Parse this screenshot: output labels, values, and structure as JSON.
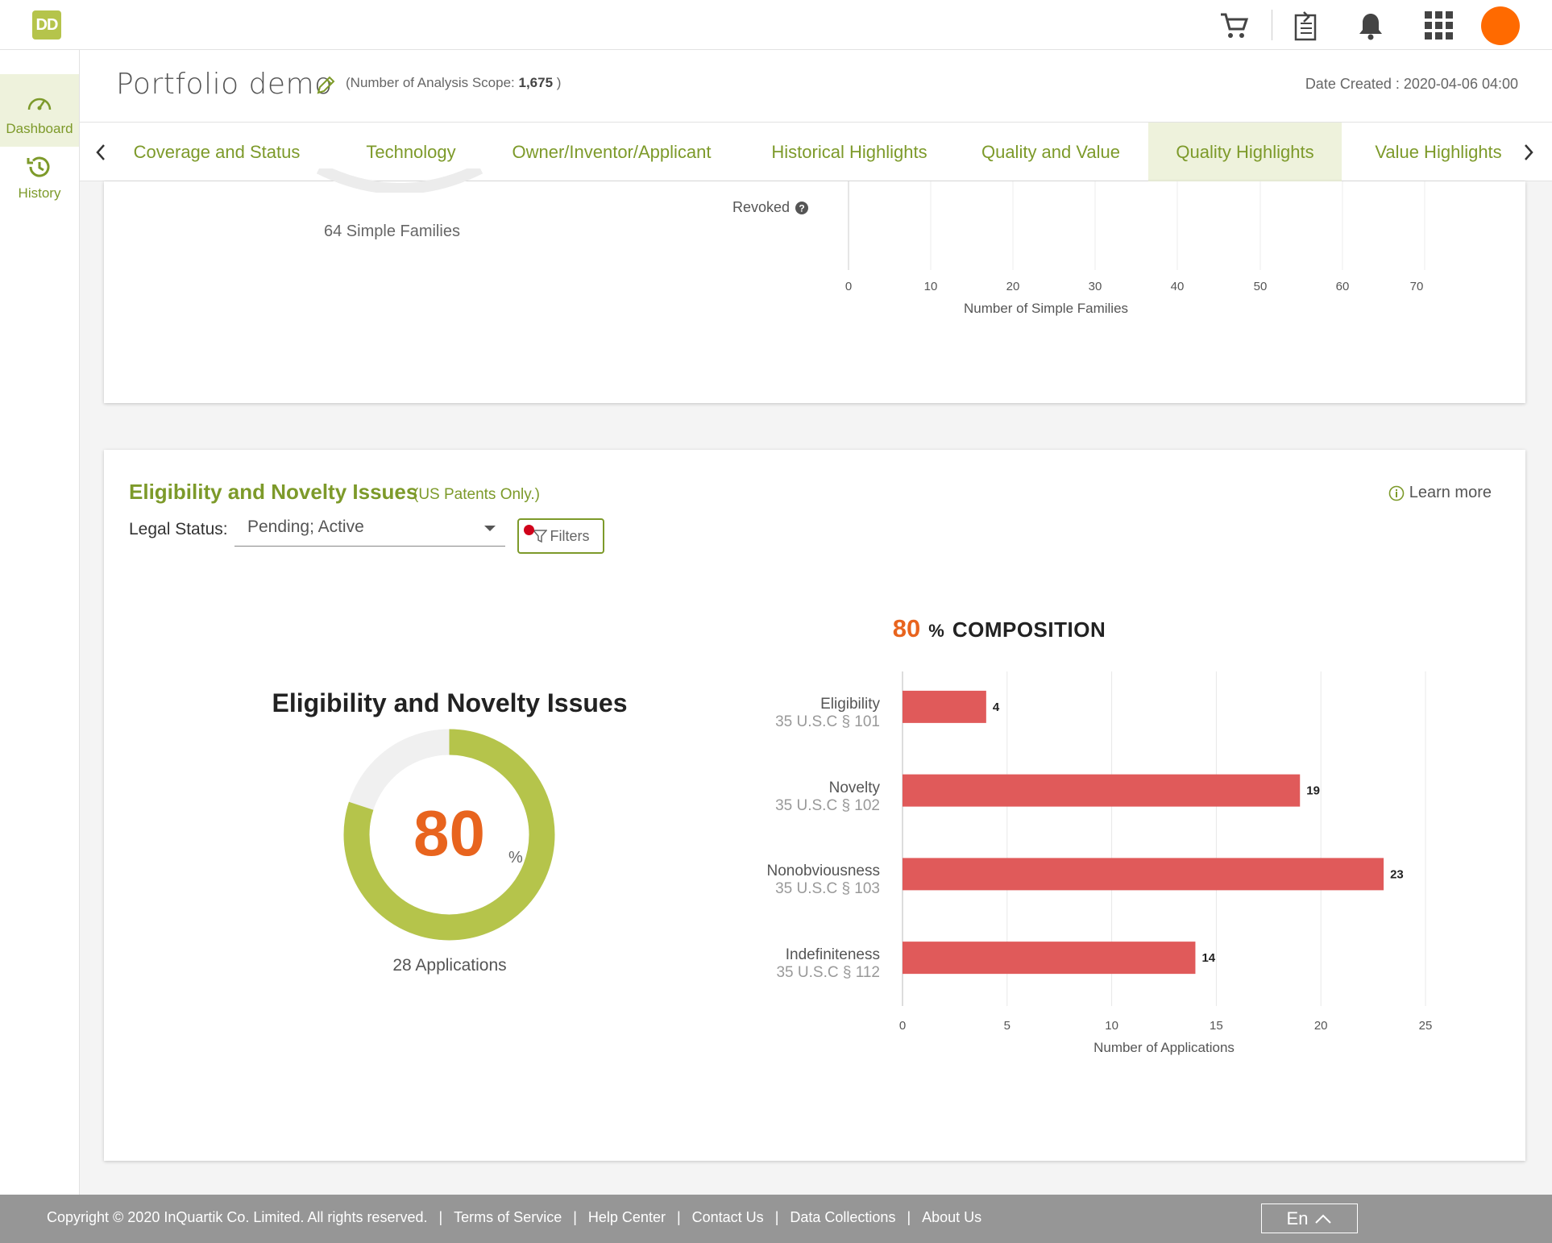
{
  "app": {
    "logo_text": "DD",
    "brand_color": "#b5c44b",
    "accent_color": "#7d9a2a",
    "highlight_color": "#e8641e",
    "bar_color": "#e05a5a"
  },
  "topbar": {
    "icons": [
      "cart-icon",
      "export-icon",
      "bell-icon",
      "apps-grid-icon"
    ],
    "avatar_color": "#ff6a00"
  },
  "sidebar": {
    "items": [
      {
        "label": "Dashboard",
        "icon": "speedometer-icon",
        "active": true
      },
      {
        "label": "History",
        "icon": "history-icon",
        "active": false
      }
    ]
  },
  "header": {
    "title": "Portfolio demo",
    "scope_prefix": "(Number of Analysis Scope: ",
    "scope_value": "1,675",
    "scope_suffix": " )",
    "date_created": "Date Created : 2020-04-06 04:00"
  },
  "tabs": [
    {
      "label": "Coverage and Status",
      "active": false
    },
    {
      "label": "Technology",
      "active": false
    },
    {
      "label": "Owner/Inventor/Applicant",
      "active": false
    },
    {
      "label": "Historical Highlights",
      "active": false
    },
    {
      "label": "Quality and Value",
      "active": false
    },
    {
      "label": "Quality Highlights",
      "active": true
    },
    {
      "label": "Value Highlights",
      "active": false
    }
  ],
  "status_card": {
    "families_label": "64 Simple Families",
    "revoked_label": "Revoked",
    "x_ticks": [
      "0",
      "10",
      "20",
      "30",
      "40",
      "50",
      "60",
      "70"
    ],
    "x_label": "Number of Simple Families"
  },
  "eligibility": {
    "title": "Eligibility and Novelty Issues",
    "subtitle": "(US Patents Only.)",
    "learn_more": "Learn more",
    "legal_status_label": "Legal Status:",
    "legal_status_value": "Pending; Active",
    "filters_label": "Filters",
    "donut_title": "Eligibility and Novelty Issues",
    "donut_value": "80",
    "donut_percent": 80,
    "donut_pct_symbol": "%",
    "donut_count": "28 Applications",
    "composition_num": "80",
    "composition_pct": "%",
    "composition_label": "COMPOSITION"
  },
  "chart_data": {
    "type": "bar",
    "orientation": "horizontal",
    "categories": [
      {
        "name": "Eligibility",
        "sub": "35 U.S.C § 101"
      },
      {
        "name": "Novelty",
        "sub": "35 U.S.C § 102"
      },
      {
        "name": "Nonobviousness",
        "sub": "35 U.S.C § 103"
      },
      {
        "name": "Indefiniteness",
        "sub": "35 U.S.C § 112"
      }
    ],
    "values": [
      4,
      19,
      23,
      14
    ],
    "xlabel": "Number of Applications",
    "xlim": [
      0,
      25
    ],
    "x_ticks": [
      "0",
      "5",
      "10",
      "15",
      "20",
      "25"
    ],
    "grid": true
  },
  "footer": {
    "copyright": "Copyright © 2020 InQuartik Co. Limited. All rights reserved.",
    "links": [
      "Terms of Service",
      "Help Center",
      "Contact Us",
      "Data Collections",
      "About Us"
    ],
    "language": "En"
  }
}
